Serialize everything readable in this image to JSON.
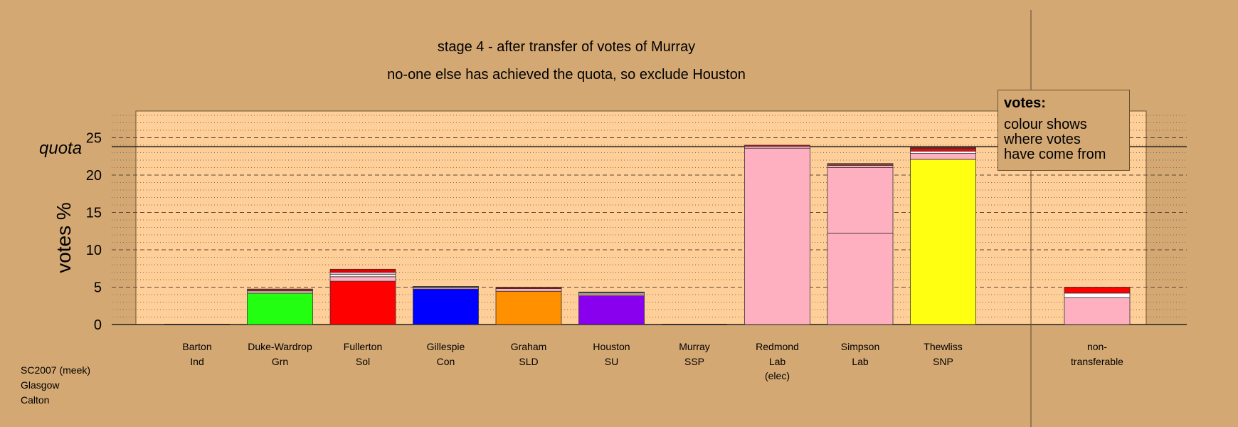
{
  "chart_data": {
    "type": "bar",
    "title": "stage 4 - after transfer of votes of Murray",
    "subtitle": "no-one else has achieved the quota, so exclude Houston",
    "ylabel": "votes %",
    "ylim": [
      0,
      28
    ],
    "yticks": [
      0,
      5,
      10,
      15,
      20,
      25
    ],
    "quota": 23.8,
    "quota_label": "quota",
    "grid": true,
    "candidates": [
      {
        "name": "Barton",
        "party": "Ind",
        "note": "",
        "segments": []
      },
      {
        "name": "Duke-Wardrop",
        "party": "Grn",
        "note": "",
        "segments": [
          {
            "value": 4.2,
            "color": "#22FF11"
          },
          {
            "value": 0.3,
            "color": "#FFB0C0"
          },
          {
            "value": 0.25,
            "color": "#8B2A1A"
          }
        ]
      },
      {
        "name": "Fullerton",
        "party": "Sol",
        "note": "",
        "segments": [
          {
            "value": 5.8,
            "color": "#FF0000"
          },
          {
            "value": 0.6,
            "color": "#FFB0C0"
          },
          {
            "value": 0.3,
            "color": "#FFFFFF"
          },
          {
            "value": 0.3,
            "color": "#FFB0C0"
          },
          {
            "value": 0.4,
            "color": "#E00000"
          }
        ]
      },
      {
        "name": "Gillespie",
        "party": "Con",
        "note": "",
        "segments": [
          {
            "value": 4.75,
            "color": "#0000FF"
          },
          {
            "value": 0.2,
            "color": "#FFB0C0"
          },
          {
            "value": 0.15,
            "color": "#444444"
          }
        ]
      },
      {
        "name": "Graham",
        "party": "SLD",
        "note": "",
        "segments": [
          {
            "value": 4.45,
            "color": "#FF9000"
          },
          {
            "value": 0.35,
            "color": "#FFB0C0"
          },
          {
            "value": 0.2,
            "color": "#8B2A1A"
          }
        ]
      },
      {
        "name": "Houston",
        "party": "SU",
        "note": "",
        "segments": [
          {
            "value": 3.85,
            "color": "#8800EE"
          },
          {
            "value": 0.25,
            "color": "#FFB0C0"
          },
          {
            "value": 0.15,
            "color": "#FFFFFF"
          },
          {
            "value": 0.1,
            "color": "#444444"
          }
        ]
      },
      {
        "name": "Murray",
        "party": "SSP",
        "note": "",
        "segments": []
      },
      {
        "name": "Redmond",
        "party": "Lab",
        "note": "(elec)",
        "segments": [
          {
            "value": 23.6,
            "color": "#FFB0C0"
          },
          {
            "value": 0.25,
            "color": "#FFB0C0"
          },
          {
            "value": 0.15,
            "color": "#CC1111"
          }
        ]
      },
      {
        "name": "Simpson",
        "party": "Lab",
        "note": "",
        "segments": [
          {
            "value": 12.2,
            "color": "#FFB0C0"
          },
          {
            "value": 8.8,
            "color": "#FFB0C0"
          },
          {
            "value": 0.3,
            "color": "#FFB0C0"
          },
          {
            "value": 0.25,
            "color": "#A33A2A"
          }
        ]
      },
      {
        "name": "Thewliss",
        "party": "SNP",
        "note": "",
        "segments": [
          {
            "value": 22.1,
            "color": "#FFFF11"
          },
          {
            "value": 0.8,
            "color": "#FFB0C0"
          },
          {
            "value": 0.3,
            "color": "#FFFFFF"
          },
          {
            "value": 0.35,
            "color": "#FF0000"
          },
          {
            "value": 0.15,
            "color": "#8B2A1A"
          }
        ]
      }
    ],
    "nontransferable": {
      "label_line1": "non-",
      "label_line2": "transferable",
      "segments": [
        {
          "value": 3.6,
          "color": "#FFB0C0"
        },
        {
          "value": 0.6,
          "color": "#FFFFFF"
        },
        {
          "value": 0.8,
          "color": "#FF0000"
        }
      ]
    }
  },
  "legend": {
    "title": "votes:",
    "lines": [
      "colour shows",
      "where votes",
      "have come from"
    ]
  },
  "footer": {
    "line1": "SC2007 (meek)",
    "line2": "Glasgow",
    "line3": "Calton"
  }
}
